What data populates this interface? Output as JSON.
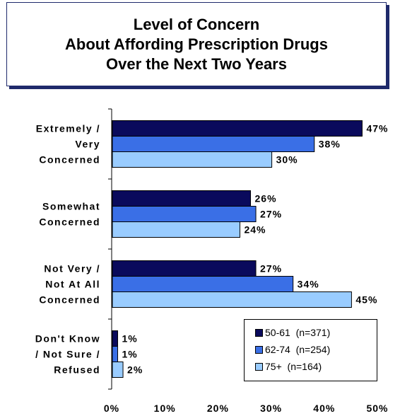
{
  "title_lines": [
    "Level of Concern",
    "About Affording Prescription Drugs",
    "Over the Next Two Years"
  ],
  "legend": [
    {
      "label": "50-61",
      "n": "(n=371)",
      "color": "#0a0a5c"
    },
    {
      "label": "62-74",
      "n": "(n=254)",
      "color": "#3a6fe6"
    },
    {
      "label": "75+",
      "n": "(n=164)",
      "color": "#99ccff"
    }
  ],
  "chart_data": {
    "type": "bar",
    "orientation": "horizontal",
    "categories": [
      [
        "Extremely /",
        "Very",
        "Concerned"
      ],
      [
        "Somewhat",
        "Concerned"
      ],
      [
        "Not Very /",
        "Not At All",
        "Concerned"
      ],
      [
        "Don't Know",
        "/ Not Sure /",
        "Refused"
      ]
    ],
    "series": [
      {
        "name": "50-61  (n=371)",
        "values": [
          47,
          26,
          27,
          1
        ],
        "labels": [
          "47%",
          "26%",
          "27%",
          "1%"
        ]
      },
      {
        "name": "62-74  (n=254)",
        "values": [
          38,
          27,
          34,
          1
        ],
        "labels": [
          "38%",
          "27%",
          "34%",
          "1%"
        ]
      },
      {
        "name": "75+  (n=164)",
        "values": [
          30,
          24,
          45,
          2
        ],
        "labels": [
          "30%",
          "24%",
          "45%",
          "2%"
        ]
      }
    ],
    "xticks": [
      "0%",
      "10%",
      "20%",
      "30%",
      "40%",
      "50%"
    ],
    "xlim": [
      0,
      50
    ],
    "legend_position": "bottom-right",
    "grid": false
  }
}
